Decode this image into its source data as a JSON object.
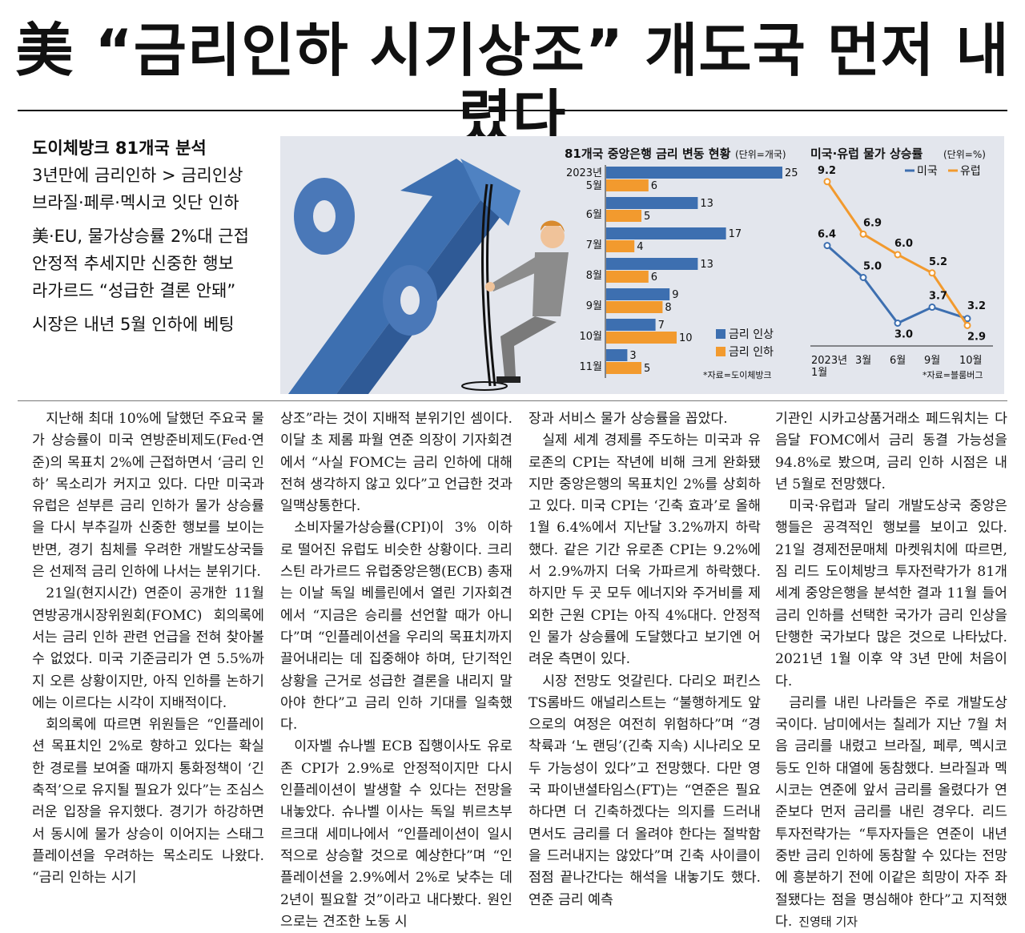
{
  "headline": "美 “금리인하 시기상조” 개도국 먼저 내렸다",
  "subheads": [
    {
      "text": "도이체방크 81개국 분석",
      "bold": true
    },
    {
      "text": "3년만에 금리인하 > 금리인상"
    },
    {
      "text": "브라질·페루·멕시코 잇단 인하"
    },
    {
      "text": "美·EU, 물가상승률 2%대 근접"
    },
    {
      "text": "안정적 추세지만 신중한 행보"
    },
    {
      "text": "라가르드 “성급한 결론 안돼”"
    },
    {
      "text": "시장은 내년 5월 인하에 베팅"
    }
  ],
  "chart_data": [
    {
      "type": "bar",
      "title": "81개국 중앙은행 금리 변동 현황",
      "unit": "(단위=개국)",
      "categories": [
        "2023년 5월",
        "6월",
        "7월",
        "8월",
        "9월",
        "10월",
        "11월"
      ],
      "category_lines": [
        [
          "2023년",
          "5월"
        ],
        [
          "6월"
        ],
        [
          "7월"
        ],
        [
          "8월"
        ],
        [
          "9월"
        ],
        [
          "10월"
        ],
        [
          "11월"
        ]
      ],
      "series": [
        {
          "name": "금리 인상",
          "color": "#3d6fb0",
          "values": [
            25,
            13,
            17,
            13,
            9,
            7,
            3
          ]
        },
        {
          "name": "금리 인하",
          "color": "#f29a2e",
          "values": [
            6,
            5,
            4,
            6,
            8,
            10,
            5
          ]
        }
      ],
      "source": "*자료=도이체방크"
    },
    {
      "type": "line",
      "title": "미국·유럽 물가 상승률",
      "unit": "(단위=%)",
      "categories": [
        "2023년 1월",
        "3월",
        "6월",
        "9월",
        "10월"
      ],
      "category_lines": [
        [
          "2023년",
          "1월"
        ],
        [
          "3월"
        ],
        [
          "6월"
        ],
        [
          "9월"
        ],
        [
          "10월"
        ]
      ],
      "series": [
        {
          "name": "미국",
          "color": "#3d6fb0",
          "values": [
            6.4,
            5.0,
            3.0,
            3.7,
            3.2
          ],
          "labels": [
            "6.4",
            "5.0",
            "3.0",
            "3.7",
            "3.2"
          ]
        },
        {
          "name": "유럽",
          "color": "#f29a2e",
          "values": [
            9.2,
            6.9,
            6.0,
            5.2,
            2.9
          ],
          "labels": [
            "9.2",
            "6.9",
            "6.0",
            "5.2",
            "2.9"
          ]
        }
      ],
      "source": "*자료=블룸버그"
    }
  ],
  "article": {
    "columns": [
      [
        {
          "text": "지난해 최대 10%에 달했던 주요국 물가 상승률이 미국 연방준비제도(Fed·연준)의 목표치 2%에 근접하면서 ‘금리 인하’ 목소리가 커지고 있다. 다만 미국과 유럽은 섣부른 금리 인하가 물가 상승률을 다시 부추길까 신중한 행보를 보이는 반면, 경기 침체를 우려한 개발도상국들은 선제적 금리 인하에 나서는 분위기다."
        },
        {
          "text": "21일(현지시간) 연준이 공개한 11월 연방공개시장위원회(FOMC) 회의록에서는 금리 인하 관련 언급을 전혀 찾아볼 수 없었다. 미국 기준금리가 연 5.5%까지 오른 상황이지만, 아직 인하를 논하기에는 이르다는 시각이 지배적이다."
        },
        {
          "text": "회의록에 따르면 위원들은 “인플레이션 목표치인 2%로 향하고 있다는 확실한 경로를 보여줄 때까지 통화정책이 ‘긴축적’으로 유지될 필요가 있다”는 조심스러운 입장을 유지했다. 경기가 하강하면서 동시에 물가 상승이 이어지는 스태그플레이션을 우려하는 목소리도 나왔다. “금리 인하는 시기"
        }
      ],
      [
        {
          "text": "상조”라는 것이 지배적 분위기인 셈이다. 이달 초 제롬 파월 연준 의장이 기자회견에서 “사실 FOMC는 금리 인하에 대해 전혀 생각하지 않고 있다”고 언급한 것과 일맥상통한다.",
          "cont": true
        },
        {
          "text": "소비자물가상승률(CPI)이 3% 이하로 떨어진 유럽도 비슷한 상황이다. 크리스틴 라가르드 유럽중앙은행(ECB) 총재는 이날 독일 베를린에서 열린 기자회견에서 “지금은 승리를 선언할 때가 아니다”며 “인플레이션을 우리의 목표치까지 끌어내리는 데 집중해야 하며, 단기적인 상황을 근거로 성급한 결론을 내리지 말아야 한다”고 금리 인하 기대를 일축했다."
        },
        {
          "text": "이자벨 슈나벨 ECB 집행이사도 유로존 CPI가 2.9%로 안정적이지만 다시 인플레이션이 발생할 수 있다는 전망을 내놓았다. 슈나벨 이사는 독일 뷔르츠부르크대 세미나에서 “인플레이션이 일시적으로 상승할 것으로 예상한다”며 “인플레이션을 2.9%에서 2%로 낮추는 데 2년이 필요할 것”이라고 내다봤다. 원인으로는 견조한 노동 시"
        }
      ],
      [
        {
          "text": "장과 서비스 물가 상승률을 꼽았다.",
          "cont": true
        },
        {
          "text": "실제 세계 경제를 주도하는 미국과 유로존의 CPI는 작년에 비해 크게 완화됐지만 중앙은행의 목표치인 2%를 상회하고 있다. 미국 CPI는 ‘긴축 효과’로 올해 1월 6.4%에서 지난달 3.2%까지 하락했다. 같은 기간 유로존 CPI는 9.2%에서 2.9%까지 더욱 가파르게 하락했다. 하지만 두 곳 모두 에너지와 주거비를 제외한 근원 CPI는 아직 4%대다. 안정적인 물가 상승률에 도달했다고 보기엔 어려운 측면이 있다."
        },
        {
          "text": "시장 전망도 엇갈린다. 다리오 퍼킨스 TS롬바드 애널리스트는 “불행하게도 앞으로의 여정은 여전히 위험하다”며 “경착륙과 ‘노 랜딩’(긴축 지속) 시나리오 모두 가능성이 있다”고 전망했다. 다만 영국 파이낸셜타임스(FT)는 “연준은 필요하다면 더 긴축하겠다는 의지를 드러내면서도 금리를 더 올려야 한다는 절박함을 드러내지는 않았다”며 긴축 사이클이 점점 끝나간다는 해석을 내놓기도 했다. 연준 금리 예측"
        }
      ],
      [
        {
          "text": "기관인 시카고상품거래소 페드워치는 다음달 FOMC에서 금리 동결 가능성을 94.8%로 봤으며, 금리 인하 시점은 내년 5월로 전망했다.",
          "cont": true
        },
        {
          "text": "미국·유럽과 달리 개발도상국 중앙은행들은 공격적인 행보를 보이고 있다. 21일 경제전문매체 마켓워치에 따르면, 짐 리드 도이체방크 투자전략가가 81개 세계 중앙은행을 분석한 결과 11월 들어 금리 인하를 선택한 국가가 금리 인상을 단행한 국가보다 많은 것으로 나타났다. 2021년 1월 이후 약 3년 만에 처음이다."
        },
        {
          "text": "금리를 내린 나라들은 주로 개발도상국이다. 남미에서는 칠레가 지난 7월 처음 금리를 내렸고 브라질, 페루, 멕시코 등도 인하 대열에 동참했다. 브라질과 멕시코는 연준에 앞서 금리를 올렸다가 연준보다 먼저 금리를 내린 경우다. 리드 투자전략가는 “투자자들은 연준이 내년 중반 금리 인하에 동참할 수 있다는 전망에 흥분하기 전에 이같은 희망이 자주 좌절됐다는 점을 명심해야 한다”고 지적했다."
        }
      ]
    ],
    "byline": "진영태 기자"
  }
}
